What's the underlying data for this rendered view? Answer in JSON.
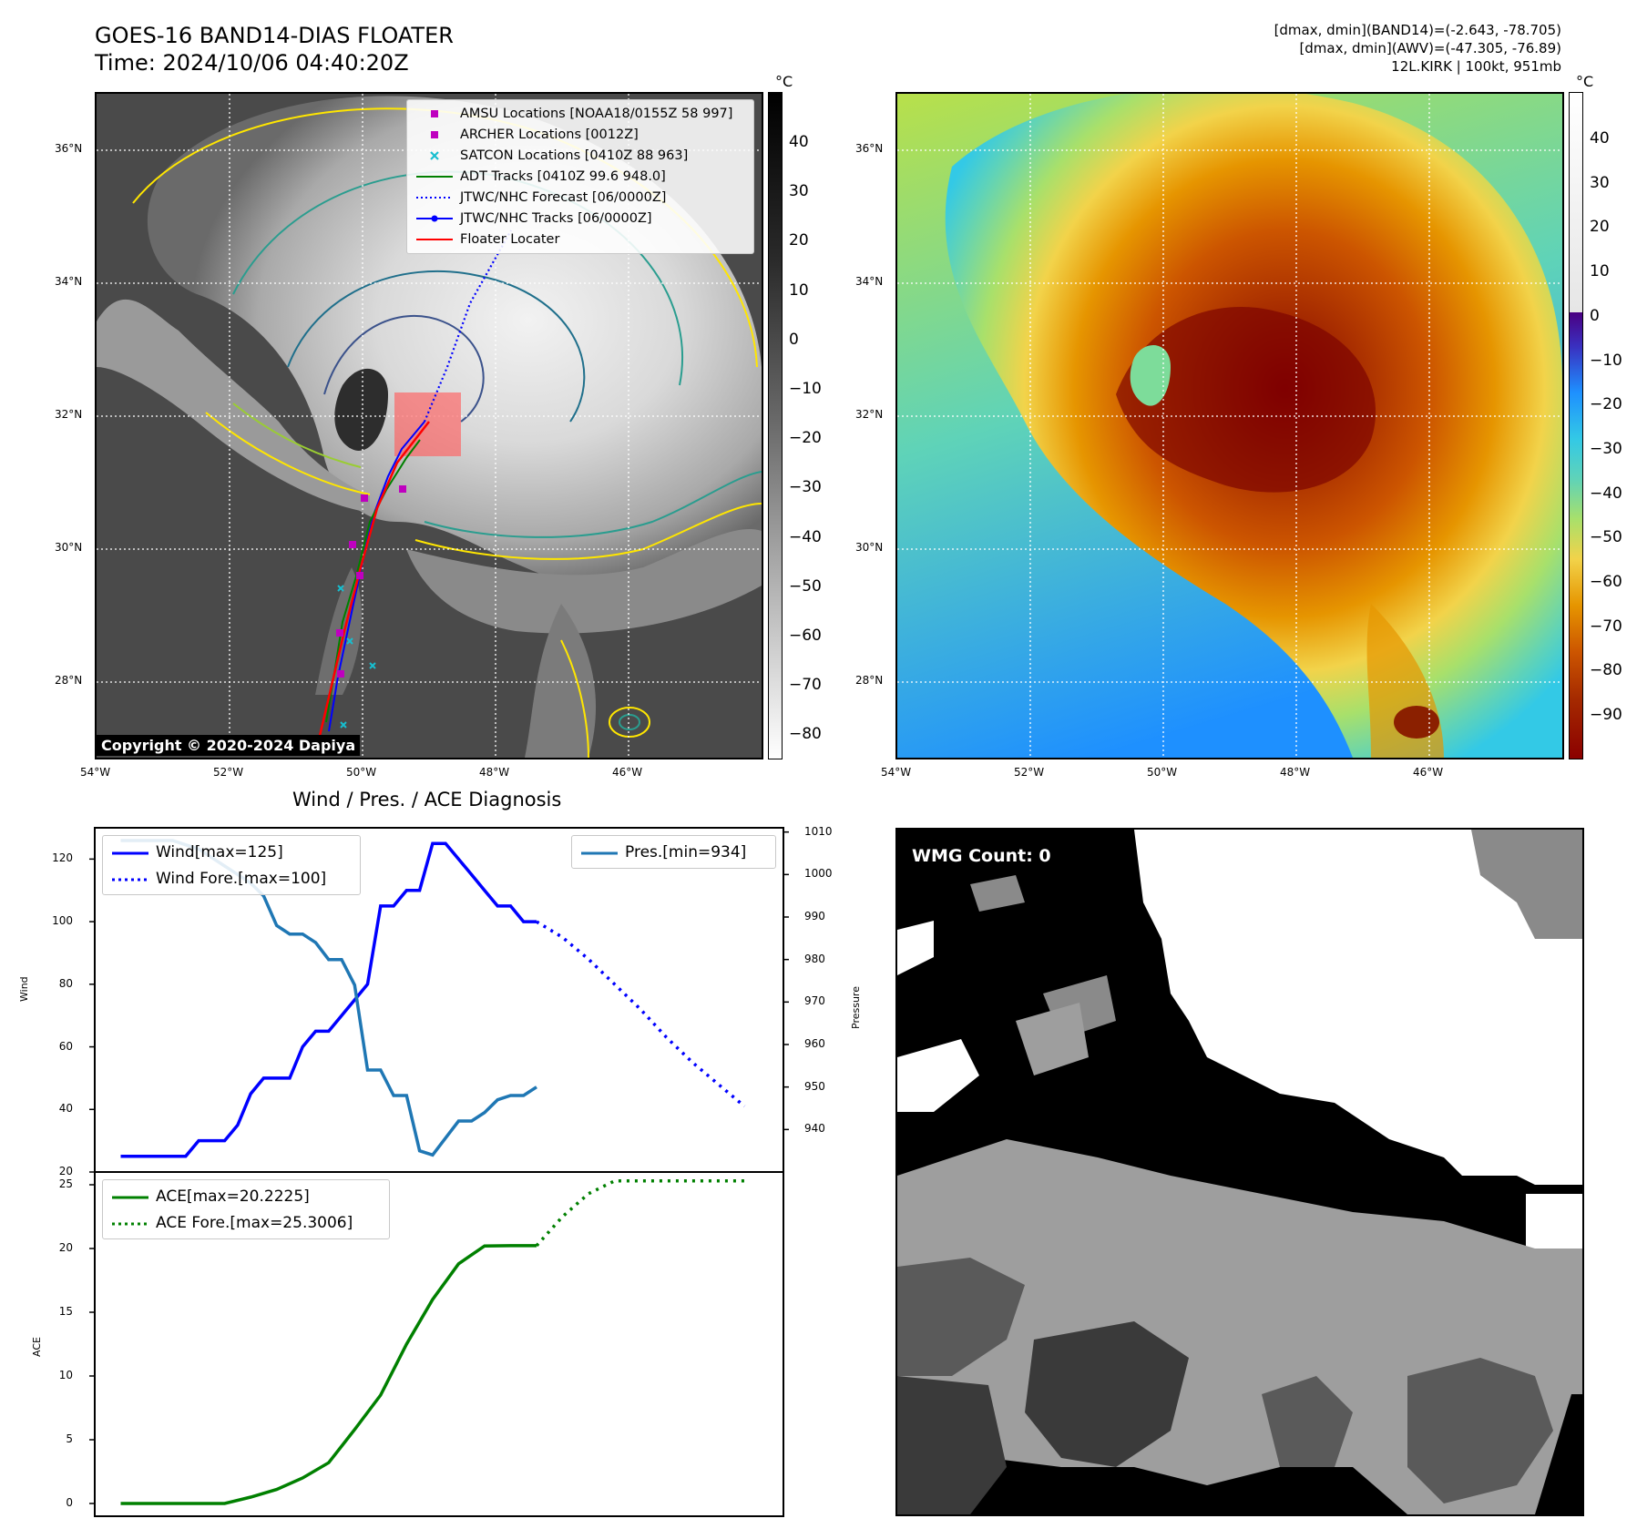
{
  "header": {
    "title_line1": "GOES-16 BAND14-DIAS FLOATER",
    "title_line2": "Time: 2024/10/06 04:40:20Z",
    "info_line1": "[dmax, dmin](BAND14)=(-2.643, -78.705)",
    "info_line2": "[dmax, dmin](AWV)=(-47.305, -76.89)",
    "info_line3": "12L.KIRK | 100kt, 951mb"
  },
  "map": {
    "lat_labels": [
      "36°N",
      "34°N",
      "32°N",
      "30°N",
      "28°N"
    ],
    "lon_labels": [
      "54°W",
      "52°W",
      "50°W",
      "48°W",
      "46°W"
    ],
    "copyright": "Copyright © 2020-2024 Dapiya",
    "legend": [
      {
        "label": "AMSU Locations [NOAA18/0155Z 58 997]",
        "icon": "magenta-square-marker",
        "color": "#bf00bf"
      },
      {
        "label": "ARCHER Locations [0012Z]",
        "icon": "magenta-square-marker",
        "color": "#bf00bf"
      },
      {
        "label": "SATCON Locations [0410Z 88 963]",
        "icon": "cyan-x-marker",
        "color": "#17becf"
      },
      {
        "label": "ADT Tracks [0410Z 99.6 948.0]",
        "icon": "green-line",
        "color": "#008000"
      },
      {
        "label": "JTWC/NHC Forecast [06/0000Z]",
        "icon": "blue-dotted-line",
        "color": "#0000ff"
      },
      {
        "label": "JTWC/NHC Tracks [06/0000Z]",
        "icon": "blue-line-dot-marker",
        "color": "#0000ff"
      },
      {
        "label": "Floater Locater",
        "icon": "red-line",
        "color": "#ff0000"
      }
    ]
  },
  "colorbar_gray": {
    "unit": "°C",
    "ticks": [
      "40",
      "30",
      "20",
      "10",
      "0",
      "−10",
      "−20",
      "−30",
      "−40",
      "−50",
      "−60",
      "−70",
      "−80"
    ]
  },
  "colorbar_color": {
    "unit": "°C",
    "ticks": [
      "40",
      "30",
      "20",
      "10",
      "0",
      "−10",
      "−20",
      "−30",
      "−40",
      "−50",
      "−60",
      "−70",
      "−80",
      "−90"
    ]
  },
  "diagnosis": {
    "title": "Wind / Pres. / ACE Diagnosis",
    "wind_ylabel": "Wind",
    "pres_ylabel": "Pressure",
    "ace_ylabel": "ACE",
    "wind_ticks": [
      "120",
      "100",
      "80",
      "60",
      "40",
      "20"
    ],
    "pres_ticks": [
      "1010",
      "1000",
      "990",
      "980",
      "970",
      "960",
      "950",
      "940"
    ],
    "ace_ticks": [
      "25",
      "20",
      "15",
      "10",
      "5",
      "0"
    ],
    "legend_wind": "Wind[max=125]",
    "legend_wind_fore": "Wind Fore.[max=100]",
    "legend_pres": "Pres.[min=934]",
    "legend_ace": "ACE[max=20.2225]",
    "legend_ace_fore": "ACE Fore.[max=25.3006]",
    "colors": {
      "wind": "#0000ff",
      "pres": "#1f77b4",
      "ace": "#008000"
    }
  },
  "wmg": {
    "label": "WMG Count: 0"
  },
  "chart_data": [
    {
      "type": "line",
      "title": "Wind / Pres. / ACE Diagnosis",
      "x": [
        0,
        1,
        2,
        3,
        4,
        5,
        6,
        7,
        8,
        9,
        10,
        11,
        12,
        13,
        14,
        15,
        16,
        17,
        18,
        19,
        20,
        21,
        22,
        23,
        24,
        25,
        26,
        27,
        28,
        29,
        30,
        31,
        32,
        33,
        34,
        35,
        36,
        37,
        38,
        39,
        40,
        41,
        42,
        43,
        44,
        45,
        46,
        47,
        48,
        49
      ],
      "ylabel": "Wind",
      "ylim": [
        20,
        130
      ],
      "series": [
        {
          "name": "Wind[max=125]",
          "style": "solid",
          "x": [
            0,
            1,
            2,
            3,
            4,
            5,
            6,
            7,
            8,
            9,
            10,
            11,
            12,
            13,
            14,
            15,
            16,
            17,
            18,
            19,
            20,
            21,
            22,
            23,
            24,
            25,
            26,
            27,
            28,
            29,
            30,
            31,
            32
          ],
          "values": [
            25,
            25,
            25,
            25,
            25,
            25,
            30,
            30,
            30,
            35,
            45,
            50,
            50,
            50,
            60,
            65,
            65,
            70,
            75,
            80,
            105,
            105,
            110,
            110,
            125,
            125,
            120,
            115,
            110,
            105,
            105,
            100,
            100
          ]
        },
        {
          "name": "Wind Fore.[max=100]",
          "style": "dotted",
          "x": [
            32,
            34,
            36,
            38,
            40,
            42,
            44,
            46,
            48
          ],
          "values": [
            100,
            95,
            88,
            80,
            72,
            63,
            55,
            48,
            41
          ]
        }
      ]
    },
    {
      "type": "line",
      "ylabel": "Pressure",
      "ylim": [
        930,
        1011
      ],
      "series": [
        {
          "name": "Pres.[min=934]",
          "x": [
            0,
            1,
            2,
            3,
            4,
            5,
            6,
            7,
            8,
            9,
            10,
            11,
            12,
            13,
            14,
            15,
            16,
            17,
            18,
            19,
            20,
            21,
            22,
            23,
            24,
            25,
            26,
            27,
            28,
            29,
            30,
            31,
            32
          ],
          "values": [
            1008,
            1008,
            1008,
            1008,
            1008,
            1007,
            1006,
            1004,
            1002,
            1000,
            998,
            995,
            988,
            986,
            986,
            984,
            980,
            980,
            974,
            954,
            954,
            948,
            948,
            935,
            934,
            938,
            942,
            942,
            944,
            947,
            948,
            948,
            950
          ]
        }
      ]
    },
    {
      "type": "line",
      "ylabel": "ACE",
      "ylim": [
        -1,
        26
      ],
      "series": [
        {
          "name": "ACE[max=20.2225]",
          "style": "solid",
          "x": [
            0,
            2,
            4,
            6,
            7,
            8,
            10,
            12,
            14,
            16,
            18,
            20,
            22,
            24,
            26,
            28,
            30,
            32
          ],
          "values": [
            0,
            0,
            0,
            0,
            0,
            0,
            0.5,
            1.1,
            2.0,
            3.2,
            5.8,
            8.5,
            12.5,
            16.0,
            18.8,
            20.2,
            20.22,
            20.2225
          ]
        },
        {
          "name": "ACE Fore.[max=25.3006]",
          "style": "dotted",
          "x": [
            32,
            34,
            36,
            38,
            40,
            42,
            44,
            46,
            48
          ],
          "values": [
            20.2225,
            22.5,
            24.3,
            25.3,
            25.3006,
            25.3006,
            25.3006,
            25.3006,
            25.3006
          ]
        }
      ]
    }
  ]
}
